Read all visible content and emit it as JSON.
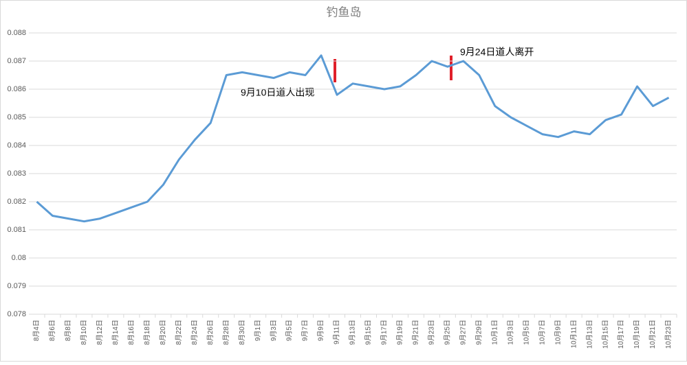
{
  "chart_data": {
    "type": "line",
    "title": "钓鱼岛",
    "categories": [
      "8月4日",
      "8月6日",
      "8月8日",
      "8月10日",
      "8月12日",
      "8月14日",
      "8月16日",
      "8月18日",
      "8月20日",
      "8月22日",
      "8月24日",
      "8月26日",
      "8月28日",
      "8月30日",
      "9月1日",
      "9月3日",
      "9月5日",
      "9月7日",
      "9月9日",
      "9月11日",
      "9月13日",
      "9月15日",
      "9月17日",
      "9月19日",
      "9月21日",
      "9月23日",
      "9月25日",
      "9月27日",
      "9月29日",
      "10月1日",
      "10月3日",
      "10月5日",
      "10月7日",
      "10月9日",
      "10月11日",
      "10月13日",
      "10月15日",
      "10月17日",
      "10月19日",
      "10月21日",
      "10月23日"
    ],
    "series": [
      {
        "name": "钓鱼岛",
        "color": "#5b9bd5",
        "values": [
          0.082,
          0.0815,
          0.0814,
          0.0813,
          0.0814,
          0.0816,
          0.0818,
          0.082,
          0.0826,
          0.0835,
          0.0842,
          0.0848,
          0.0865,
          0.0866,
          0.0865,
          0.0864,
          0.0866,
          0.0865,
          0.0872,
          0.0858,
          0.0862,
          0.0861,
          0.086,
          0.0861,
          0.0865,
          0.087,
          0.0868,
          0.087,
          0.0865,
          0.0854,
          0.085,
          0.0847,
          0.0844,
          0.0843,
          0.0845,
          0.0844,
          0.0849,
          0.0851,
          0.0861,
          0.0854,
          0.0857
        ]
      }
    ],
    "ylim": [
      0.078,
      0.088
    ],
    "yticks": [
      0.078,
      0.079,
      0.08,
      0.081,
      0.082,
      0.083,
      0.084,
      0.085,
      0.086,
      0.087,
      0.088
    ],
    "grid": true,
    "annotations": [
      "9月10日道人出现",
      "9月24日道人离开"
    ]
  }
}
